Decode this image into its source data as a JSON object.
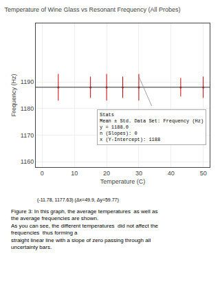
{
  "chart_data": {
    "type": "scatter",
    "title": "Temperature of Wine Glass vs Resonant Frequency (All Probes)",
    "xlabel": "Temperature (C)",
    "ylabel": "Frequency (Hz)",
    "xlim": [
      -2,
      52
    ],
    "ylim": [
      1158,
      1212
    ],
    "xticks": [
      0,
      10,
      20,
      30,
      40,
      50
    ],
    "yticks": [
      1160,
      1170,
      1180,
      1190
    ],
    "grid": true,
    "series": [
      {
        "type": "scatter",
        "color": "#cc0000",
        "x": [
          5,
          15,
          20,
          25,
          30,
          43,
          50
        ],
        "values": [
          1188,
          1188,
          1188,
          1188,
          1188,
          1188,
          1188
        ],
        "error": [
          5,
          4,
          5,
          4,
          5,
          3.5,
          4
        ]
      },
      {
        "type": "line",
        "color": "#555555",
        "x": [
          -2,
          52
        ],
        "values": [
          1188,
          1188
        ]
      },
      {
        "type": "line",
        "color": "#888888",
        "x": [
          30,
          34
        ],
        "values": [
          1192,
          1181
        ]
      }
    ],
    "annotations": [
      "Stats\nMean ± Std. Data Set: Frequency (Hz)\ny = 1188.0\nn (Slopes): 0\nx (Y-Intercept): 1188",
      "(-11.78, 1177.63) (Δx=49.9, Δy=59.77)",
      "Figure 3: In this graph, the average temperatures  as well as the average frequencies are shown.\nAs you can see, the different temperatures  did not affect the frequencies  thus forming a\nstraight linear line with a slope of zero passing through all uncertainty bars."
    ]
  }
}
